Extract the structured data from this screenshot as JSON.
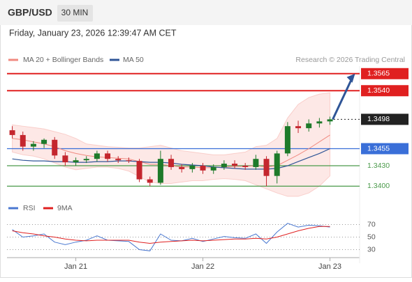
{
  "header": {
    "symbol": "GBP/USD",
    "timeframe": "30 MIN",
    "datetime": "Friday, January 23, 2026 12:39:47 AM CET"
  },
  "chart_data": [
    {
      "type": "candlestick",
      "legend": [
        "MA 20 + Bollinger Bands",
        "MA 50"
      ],
      "credit": "Research © 2026 Trading Central",
      "open": [
        1.3482,
        1.3475,
        1.3458,
        1.3462,
        1.3468,
        1.3445,
        1.3435,
        1.3438,
        1.344,
        1.3448,
        1.344,
        1.3438,
        1.3437,
        1.341,
        1.3405,
        1.344,
        1.3428,
        1.3425,
        1.343,
        1.3423,
        1.3428,
        1.3433,
        1.343,
        1.3428,
        1.344,
        1.3415,
        1.3448,
        1.3488,
        1.3485,
        1.3492,
        1.3495
      ],
      "high": [
        1.3488,
        1.348,
        1.3466,
        1.347,
        1.3472,
        1.345,
        1.3442,
        1.3444,
        1.3452,
        1.3452,
        1.3444,
        1.3442,
        1.344,
        1.3414,
        1.3452,
        1.3446,
        1.3432,
        1.3434,
        1.3434,
        1.3432,
        1.3438,
        1.3438,
        1.3434,
        1.3446,
        1.3444,
        1.3452,
        1.3494,
        1.3496,
        1.3498,
        1.35,
        1.3502
      ],
      "low": [
        1.347,
        1.3452,
        1.3452,
        1.3456,
        1.344,
        1.343,
        1.343,
        1.3434,
        1.3436,
        1.3436,
        1.3434,
        1.3434,
        1.3406,
        1.34,
        1.3402,
        1.3424,
        1.342,
        1.342,
        1.3418,
        1.3418,
        1.3424,
        1.3426,
        1.3424,
        1.3424,
        1.34,
        1.3404,
        1.3444,
        1.3478,
        1.348,
        1.3486,
        1.349
      ],
      "close": [
        1.3475,
        1.3458,
        1.3462,
        1.3468,
        1.3445,
        1.3435,
        1.3438,
        1.344,
        1.3448,
        1.344,
        1.3438,
        1.3437,
        1.341,
        1.3405,
        1.344,
        1.3428,
        1.3425,
        1.343,
        1.3423,
        1.3428,
        1.3433,
        1.343,
        1.3428,
        1.344,
        1.3415,
        1.3448,
        1.3488,
        1.3485,
        1.3492,
        1.3495,
        1.3498
      ],
      "up_color": "#1e7a2a",
      "down_color": "#c4262e",
      "series": [
        {
          "name": "MA 20 + Bollinger Bands",
          "color": "#f08a80",
          "values": [
            1.347,
            1.3468,
            1.3465,
            1.3462,
            1.3458,
            1.3452,
            1.3448,
            1.3445,
            1.3443,
            1.3442,
            1.3441,
            1.344,
            1.3436,
            1.3432,
            1.3432,
            1.343,
            1.3428,
            1.3428,
            1.3427,
            1.3427,
            1.3428,
            1.3429,
            1.3429,
            1.343,
            1.3428,
            1.343,
            1.3438,
            1.3446,
            1.3455,
            1.3465,
            1.3475
          ],
          "upper": [
            1.349,
            1.3488,
            1.3486,
            1.3484,
            1.348,
            1.3476,
            1.347,
            1.3462,
            1.346,
            1.3458,
            1.3457,
            1.3456,
            1.3456,
            1.3458,
            1.346,
            1.3456,
            1.3452,
            1.345,
            1.3448,
            1.3446,
            1.3446,
            1.3448,
            1.345,
            1.3458,
            1.346,
            1.347,
            1.35,
            1.352,
            1.353,
            1.3535,
            1.3537
          ],
          "lower": [
            1.345,
            1.3446,
            1.3444,
            1.344,
            1.3434,
            1.3428,
            1.3424,
            1.3426,
            1.3428,
            1.3428,
            1.3426,
            1.3422,
            1.3414,
            1.3406,
            1.3404,
            1.3404,
            1.3406,
            1.3408,
            1.3408,
            1.341,
            1.3411,
            1.341,
            1.3408,
            1.3402,
            1.3396,
            1.339,
            1.3385,
            1.3385,
            1.339,
            1.34,
            1.3415
          ]
        },
        {
          "name": "MA 50",
          "color": "#2f5597",
          "values": [
            1.344,
            1.3438,
            1.3437,
            1.3437,
            1.3436,
            1.3436,
            1.3435,
            1.3435,
            1.3436,
            1.3436,
            1.3437,
            1.3437,
            1.3436,
            1.3435,
            1.3435,
            1.3434,
            1.3432,
            1.3431,
            1.343,
            1.3428,
            1.3427,
            1.3426,
            1.3425,
            1.3425,
            1.3425,
            1.3426,
            1.343,
            1.3436,
            1.3442,
            1.3448,
            1.3455
          ]
        }
      ],
      "levels": [
        {
          "value": 1.3565,
          "label": "1.3565",
          "color": "#e02020"
        },
        {
          "value": 1.354,
          "label": "1.3540",
          "color": "#e02020"
        },
        {
          "value": 1.3498,
          "label": "1.3498",
          "color": "#222222"
        },
        {
          "value": 1.3455,
          "label": "1.3455",
          "color": "#3a6fd8"
        },
        {
          "value": 1.343,
          "label": "1.3430",
          "color": "#4a9a4a"
        },
        {
          "value": 1.34,
          "label": "1.3400",
          "color": "#4a9a4a"
        }
      ],
      "ylim": [
        1.3382,
        1.3576
      ],
      "xlim": [
        -0.5,
        32.8
      ],
      "xticks": [
        {
          "value": 6,
          "label": "Jan 21"
        },
        {
          "value": 18,
          "label": "Jan 22"
        },
        {
          "value": 30,
          "label": "Jan 23"
        }
      ]
    },
    {
      "type": "line",
      "series": [
        {
          "name": "RSI",
          "color": "#4a78d0",
          "values": [
            62,
            50,
            52,
            55,
            42,
            38,
            42,
            45,
            52,
            45,
            44,
            43,
            30,
            28,
            55,
            45,
            44,
            48,
            43,
            47,
            51,
            49,
            48,
            55,
            40,
            58,
            72,
            66,
            69,
            68,
            66
          ]
        },
        {
          "name": "9MA",
          "color": "#e02020",
          "values": [
            60,
            57,
            55,
            52,
            50,
            47,
            45,
            44,
            45,
            45,
            45,
            45,
            42,
            40,
            42,
            43,
            44,
            45,
            44,
            45,
            46,
            47,
            47,
            48,
            47,
            50,
            55,
            60,
            64,
            67,
            67
          ]
        }
      ],
      "ylim": [
        15,
        95
      ],
      "yticks": [
        70,
        50,
        30
      ]
    }
  ]
}
